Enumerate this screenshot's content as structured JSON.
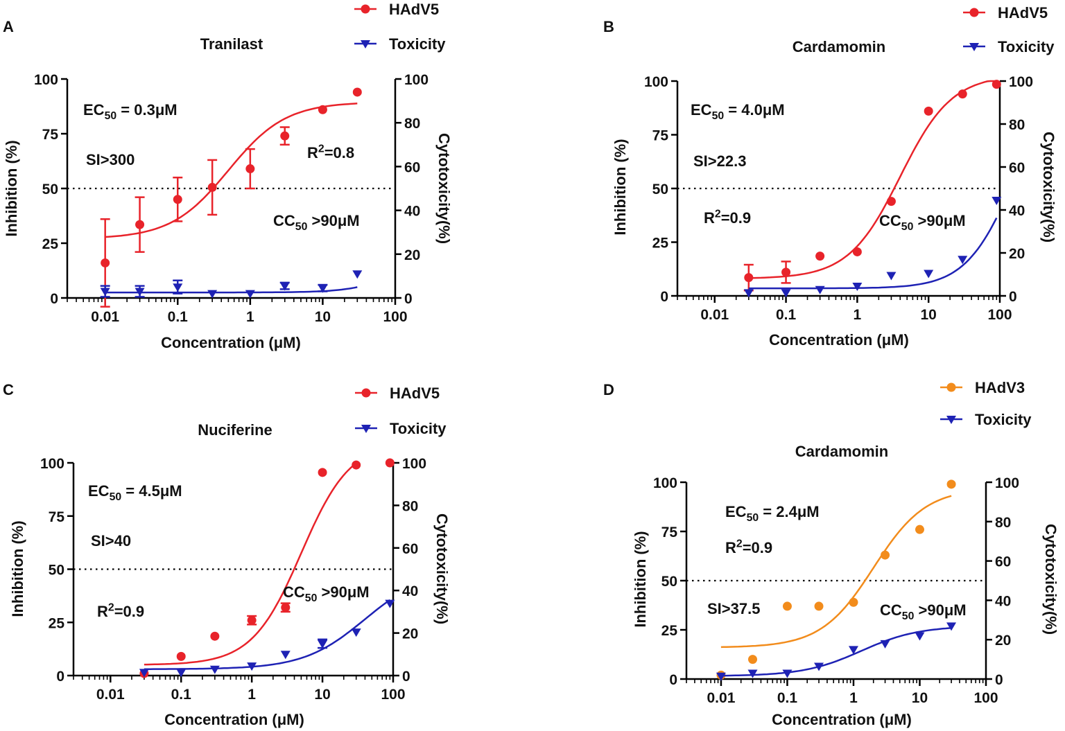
{
  "figure": {
    "colors": {
      "red": "#e8232a",
      "blue": "#1e22b4",
      "orange": "#f28c1c",
      "axis": "#000000"
    }
  },
  "chart_data": [
    {
      "panel": "A",
      "type": "scatter",
      "title": "Tranilast",
      "xlabel": "Concentration (μM)",
      "ylabel": "Inhibition (%)",
      "y2label": "Cytotoxicity(%)",
      "xscale": "log",
      "xlim": [
        0.003,
        100
      ],
      "ylim": [
        0,
        100
      ],
      "y2lim": [
        0,
        100
      ],
      "xticks": [
        "0.01",
        "0.1",
        "1",
        "10",
        "100"
      ],
      "yticks": [
        "0",
        "25",
        "50",
        "75",
        "100"
      ],
      "y2ticks": [
        "0",
        "20",
        "40",
        "60",
        "80",
        "100"
      ],
      "threshold": 50,
      "legend": [
        {
          "label": "HAdV5",
          "marker": "circle",
          "color": "#e8232a"
        },
        {
          "label": "Toxicity",
          "marker": "triangle-down",
          "color": "#1e22b4"
        }
      ],
      "annotations": {
        "ec50": {
          "prefix": "EC",
          "sub": "50",
          "rest": " = 0.3μM"
        },
        "si": "SI>300",
        "r2": {
          "prefix": "R",
          "sup": "2",
          "rest": "=0.8"
        },
        "cc50": {
          "prefix": "CC",
          "sub": "50",
          "rest": " >90μM"
        }
      },
      "series": [
        {
          "name": "HAdV5",
          "x": [
            0.01,
            0.03,
            0.1,
            0.3,
            1,
            3,
            10,
            30
          ],
          "y": [
            16,
            33.5,
            45,
            50.5,
            59,
            74,
            86,
            94
          ],
          "err": [
            20,
            12.5,
            10,
            12.5,
            9,
            4,
            0,
            0
          ],
          "fit": {
            "bottom": 27,
            "top": 89.5,
            "ec50": 0.5,
            "hill": 1.1,
            "from": 0.01,
            "to": 30
          }
        },
        {
          "name": "Toxicity",
          "x": [
            0.01,
            0.03,
            0.1,
            0.3,
            1,
            3,
            10,
            30
          ],
          "y": [
            3,
            3,
            5,
            2,
            2,
            5.5,
            4.5,
            11
          ],
          "err": [
            2.5,
            2.5,
            3,
            0,
            0,
            1.5,
            1.5,
            0
          ],
          "fit": {
            "bottom": 2.5,
            "top": 100,
            "ec50": 500,
            "hill": 1.3,
            "from": 0.01,
            "to": 30
          }
        }
      ]
    },
    {
      "panel": "B",
      "type": "scatter",
      "title": "Cardamomin",
      "xlabel": "Concentration (μM)",
      "ylabel": "Inhibition (%)",
      "y2label": "Cytotoxicity(%)",
      "xscale": "log",
      "xlim": [
        0.003,
        100
      ],
      "ylim": [
        0,
        100
      ],
      "y2lim": [
        0,
        100
      ],
      "xticks": [
        "0.01",
        "0.1",
        "1",
        "10",
        "100"
      ],
      "yticks": [
        "0",
        "25",
        "50",
        "75",
        "100"
      ],
      "y2ticks": [
        "0",
        "20",
        "40",
        "60",
        "80",
        "100"
      ],
      "threshold": 50,
      "legend": [
        {
          "label": "HAdV5",
          "marker": "circle",
          "color": "#e8232a"
        },
        {
          "label": "Toxicity",
          "marker": "triangle-down",
          "color": "#1e22b4"
        }
      ],
      "annotations": {
        "ec50": {
          "prefix": "EC",
          "sub": "50",
          "rest": " = 4.0μM"
        },
        "si": "SI>22.3",
        "r2": {
          "prefix": "R",
          "sup": "2",
          "rest": "=0.9"
        },
        "cc50": {
          "prefix": "CC",
          "sub": "50",
          "rest": " >90μM"
        }
      },
      "series": [
        {
          "name": "HAdV5",
          "x": [
            0.03,
            0.1,
            0.3,
            1,
            3,
            10,
            30,
            90
          ],
          "y": [
            8.5,
            11,
            18.5,
            20.5,
            44,
            86,
            94,
            98.5
          ],
          "err": [
            6,
            5,
            0,
            0,
            0,
            0,
            0,
            0
          ],
          "fit": {
            "bottom": 8,
            "top": 103,
            "ec50": 4,
            "hill": 1.2,
            "from": 0.03,
            "to": 90
          }
        },
        {
          "name": "Toxicity",
          "x": [
            0.03,
            0.1,
            0.3,
            1,
            3,
            10,
            30,
            90
          ],
          "y": [
            1.5,
            1.5,
            3,
            4.5,
            9.5,
            10.5,
            17,
            44.5
          ],
          "err": [
            0,
            0,
            0,
            0,
            0,
            0,
            0,
            0
          ],
          "fit": {
            "bottom": 3.5,
            "top": 100,
            "ec50": 150,
            "hill": 1.3,
            "from": 0.03,
            "to": 90
          }
        }
      ]
    },
    {
      "panel": "C",
      "type": "scatter",
      "title": "Nuciferine",
      "xlabel": "Concentration (μM)",
      "ylabel": "Inhibition (%)",
      "y2label": "Cytotoxicity(%)",
      "xscale": "log",
      "xlim": [
        0.003,
        100
      ],
      "ylim": [
        0,
        100
      ],
      "y2lim": [
        0,
        100
      ],
      "xticks": [
        "0.01",
        "0.1",
        "1",
        "10",
        "100"
      ],
      "yticks": [
        "0",
        "25",
        "50",
        "75",
        "100"
      ],
      "y2ticks": [
        "0",
        "20",
        "40",
        "60",
        "80",
        "100"
      ],
      "threshold": 50,
      "legend": [
        {
          "label": "HAdV5",
          "marker": "circle",
          "color": "#e8232a"
        },
        {
          "label": "Toxicity",
          "marker": "triangle-down",
          "color": "#1e22b4"
        }
      ],
      "annotations": {
        "ec50": {
          "prefix": "EC",
          "sub": "50",
          "rest": " = 4.5μM"
        },
        "si": "SI>40",
        "r2": {
          "prefix": "R",
          "sup": "2",
          "rest": "=0.9"
        },
        "cc50": {
          "prefix": "CC",
          "sub": "50",
          "rest": " >90μM"
        }
      },
      "series": [
        {
          "name": "HAdV5",
          "x": [
            0.03,
            0.1,
            0.3,
            1,
            3,
            10,
            30,
            90
          ],
          "y": [
            1,
            9,
            18.5,
            26,
            32,
            95.5,
            99,
            100
          ],
          "err": [
            0,
            0,
            0,
            2,
            2,
            0,
            0,
            0
          ],
          "fit": {
            "bottom": 5,
            "top": 110,
            "ec50": 5,
            "hill": 1.25,
            "from": 0.03,
            "to": 30
          }
        },
        {
          "name": "Toxicity",
          "x": [
            0.03,
            0.1,
            0.3,
            1,
            3,
            10,
            30,
            90
          ],
          "y": [
            1.5,
            1.5,
            3,
            4.5,
            10,
            15,
            20.5,
            34
          ],
          "err": [
            0,
            0,
            0,
            0,
            0,
            2,
            0,
            0
          ],
          "fit": {
            "bottom": 3,
            "top": 50,
            "ec50": 40,
            "hill": 1.0,
            "from": 0.03,
            "to": 90
          }
        }
      ]
    },
    {
      "panel": "D",
      "type": "scatter",
      "title": "Cardamomin",
      "xlabel": "Concentration (μM)",
      "ylabel": "Inhibition (%)",
      "y2label": "Cytotoxicity(%)",
      "xscale": "log",
      "xlim": [
        0.003,
        100
      ],
      "ylim": [
        0,
        100
      ],
      "y2lim": [
        0,
        100
      ],
      "xticks": [
        "0.01",
        "0.1",
        "1",
        "10",
        "100"
      ],
      "yticks": [
        "0",
        "25",
        "50",
        "75",
        "100"
      ],
      "y2ticks": [
        "0",
        "20",
        "40",
        "60",
        "80",
        "100"
      ],
      "threshold": 50,
      "legend": [
        {
          "label": "HAdV3",
          "marker": "circle",
          "color": "#f28c1c"
        },
        {
          "label": "Toxicity",
          "marker": "triangle-down",
          "color": "#1e22b4"
        }
      ],
      "annotations": {
        "ec50": {
          "prefix": "EC",
          "sub": "50",
          "rest": " = 2.4μM"
        },
        "si": "SI>37.5",
        "r2": {
          "prefix": "R",
          "sup": "2",
          "rest": "=0.9"
        },
        "cc50": {
          "prefix": "CC",
          "sub": "50",
          "rest": " >90μM"
        }
      },
      "series": [
        {
          "name": "HAdV3",
          "x": [
            0.01,
            0.03,
            0.1,
            0.3,
            1,
            3,
            10,
            30
          ],
          "y": [
            2,
            10,
            37,
            37,
            39,
            63,
            76,
            99
          ],
          "err": [
            0,
            0,
            0,
            0,
            0,
            0,
            0,
            0
          ],
          "fit": {
            "bottom": 16,
            "top": 97,
            "ec50": 2,
            "hill": 1.1,
            "from": 0.01,
            "to": 30
          }
        },
        {
          "name": "Toxicity",
          "x": [
            0.01,
            0.03,
            0.1,
            0.3,
            1,
            3,
            10,
            30
          ],
          "y": [
            1.5,
            3,
            3,
            6.5,
            15,
            18,
            22,
            27
          ],
          "err": [
            0,
            0,
            0,
            0,
            0,
            0,
            0,
            0
          ],
          "fit": {
            "bottom": 1.5,
            "top": 27,
            "ec50": 1.3,
            "hill": 1.0,
            "from": 0.01,
            "to": 30
          }
        }
      ]
    }
  ]
}
